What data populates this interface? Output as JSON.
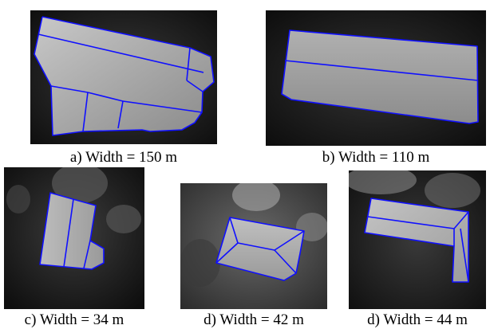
{
  "figure": {
    "panels": [
      {
        "id": "a",
        "caption": "a) Width = 150 m"
      },
      {
        "id": "b",
        "caption": "b) Width = 110 m"
      },
      {
        "id": "c",
        "caption": "c) Width = 34 m"
      },
      {
        "id": "d1",
        "caption": "d) Width = 42 m"
      },
      {
        "id": "d2",
        "caption": "d) Width = 44 m"
      }
    ],
    "colors": {
      "outline": "#1010ff",
      "background": "#1a1a1a"
    }
  }
}
